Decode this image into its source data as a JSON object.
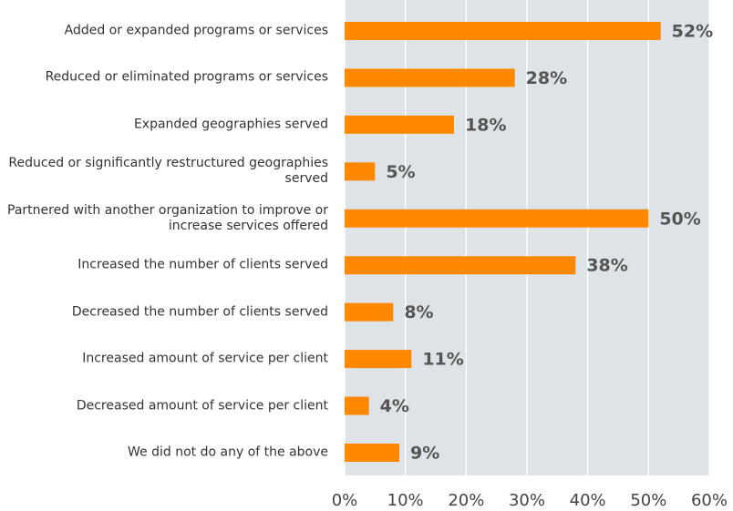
{
  "chart_data": {
    "type": "bar",
    "orientation": "horizontal",
    "categories": [
      "Added or expanded programs or services",
      "Reduced or eliminated programs or services",
      "Expanded geographies served",
      "Reduced or significantly restructured geographies served",
      "Partnered with another organization to improve or increase services offered",
      "Increased the number of clients served",
      "Decreased the number of clients served",
      "Increased amount of service per client",
      "Decreased amount of service per client",
      "We did not do any of the above"
    ],
    "values": [
      52,
      28,
      18,
      5,
      50,
      38,
      8,
      11,
      4,
      9
    ],
    "value_labels": [
      "52%",
      "28%",
      "18%",
      "5%",
      "50%",
      "38%",
      "8%",
      "11%",
      "4%",
      "9%"
    ],
    "color": "#ff8800",
    "xlim": [
      0,
      60
    ],
    "xticks": [
      {
        "value": 0,
        "label": "0%"
      },
      {
        "value": 10,
        "label": "10%"
      },
      {
        "value": 20,
        "label": "20%"
      },
      {
        "value": 30,
        "label": "30%"
      },
      {
        "value": 40,
        "label": "40%"
      },
      {
        "value": 50,
        "label": "50%"
      },
      {
        "value": 60,
        "label": "60%"
      }
    ],
    "grid": true
  }
}
